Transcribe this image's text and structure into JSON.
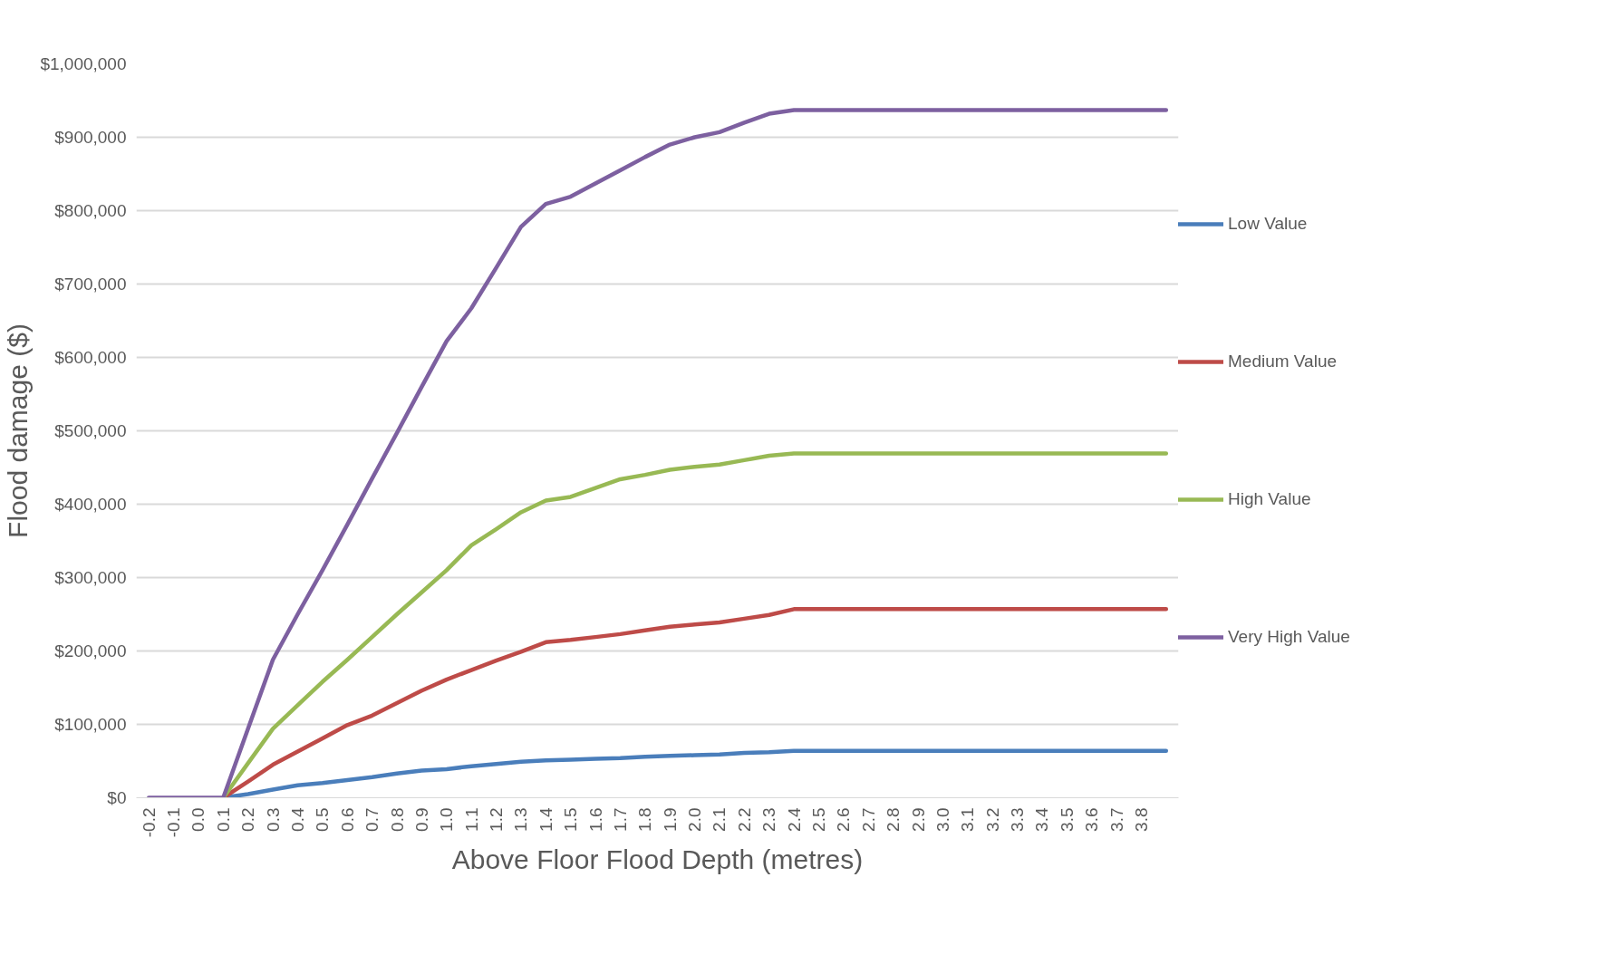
{
  "chart_data": {
    "type": "line",
    "xlabel": "Above Floor Flood Depth (metres)",
    "ylabel": "Flood damage ($)",
    "categories": [
      "-0.2",
      "-0.1",
      "0.0",
      "0.1",
      "0.2",
      "0.3",
      "0.4",
      "0.5",
      "0.6",
      "0.7",
      "0.8",
      "0.9",
      "1.0",
      "1.1",
      "1.2",
      "1.3",
      "1.4",
      "1.5",
      "1.6",
      "1.7",
      "1.8",
      "1.9",
      "2.0",
      "2.1",
      "2.2",
      "2.3",
      "2.4",
      "2.5",
      "2.6",
      "2.7",
      "2.8",
      "2.9",
      "3.0",
      "3.1",
      "3.2",
      "3.3",
      "3.4",
      "3.5",
      "3.6",
      "3.7",
      "3.8",
      null
    ],
    "series": [
      {
        "name": "Low Value",
        "color": "#4a7ebb",
        "values": [
          null,
          null,
          null,
          0,
          5000,
          11000,
          17000,
          20000,
          24000,
          28000,
          33000,
          37000,
          39000,
          43000,
          46000,
          49000,
          51000,
          52000,
          53000,
          54000,
          56000,
          57000,
          58000,
          59000,
          61000,
          62000,
          64000,
          64000,
          64000,
          64000,
          64000,
          64000,
          64000,
          64000,
          64000,
          64000,
          64000,
          64000,
          64000,
          64000,
          64000,
          64000
        ]
      },
      {
        "name": "Medium Value",
        "color": "#be4b48",
        "values": [
          null,
          null,
          null,
          0,
          22000,
          45000,
          63000,
          81000,
          99000,
          112000,
          129000,
          146000,
          161000,
          174000,
          187000,
          199000,
          212000,
          215000,
          219000,
          223000,
          228000,
          233000,
          236000,
          239000,
          244000,
          249000,
          257000,
          257000,
          257000,
          257000,
          257000,
          257000,
          257000,
          257000,
          257000,
          257000,
          257000,
          257000,
          257000,
          257000,
          257000,
          257000
        ]
      },
      {
        "name": "High Value",
        "color": "#98b954",
        "values": [
          null,
          null,
          null,
          0,
          47000,
          94000,
          126000,
          158000,
          188000,
          219000,
          250000,
          280000,
          310000,
          344000,
          366000,
          389000,
          405000,
          410000,
          422000,
          434000,
          440000,
          447000,
          451000,
          454000,
          460000,
          466000,
          469000,
          469000,
          469000,
          469000,
          469000,
          469000,
          469000,
          469000,
          469000,
          469000,
          469000,
          469000,
          469000,
          469000,
          469000,
          469000
        ]
      },
      {
        "name": "Very High Value",
        "color": "#7d60a0",
        "values": [
          0,
          0,
          0,
          0,
          94000,
          188000,
          250000,
          310000,
          372000,
          435000,
          497000,
          560000,
          622000,
          667000,
          722000,
          778000,
          809000,
          819000,
          837000,
          855000,
          873000,
          890000,
          900000,
          907000,
          920000,
          932000,
          937000,
          937000,
          937000,
          937000,
          937000,
          937000,
          937000,
          937000,
          937000,
          937000,
          937000,
          937000,
          937000,
          937000,
          937000,
          937000
        ]
      }
    ],
    "ylim": [
      0,
      1000000
    ],
    "yticks": [
      {
        "value": 0,
        "label": "$0"
      },
      {
        "value": 100000,
        "label": "$100,000"
      },
      {
        "value": 200000,
        "label": "$200,000"
      },
      {
        "value": 300000,
        "label": "$300,000"
      },
      {
        "value": 400000,
        "label": "$400,000"
      },
      {
        "value": 500000,
        "label": "$500,000"
      },
      {
        "value": 600000,
        "label": "$600,000"
      },
      {
        "value": 700000,
        "label": "$700,000"
      },
      {
        "value": 800000,
        "label": "$800,000"
      },
      {
        "value": 900000,
        "label": "$900,000"
      },
      {
        "value": 1000000,
        "label": "$1,000,000"
      }
    ],
    "grid": "y",
    "legend": "right",
    "marker": "none",
    "line_style": "solid"
  }
}
